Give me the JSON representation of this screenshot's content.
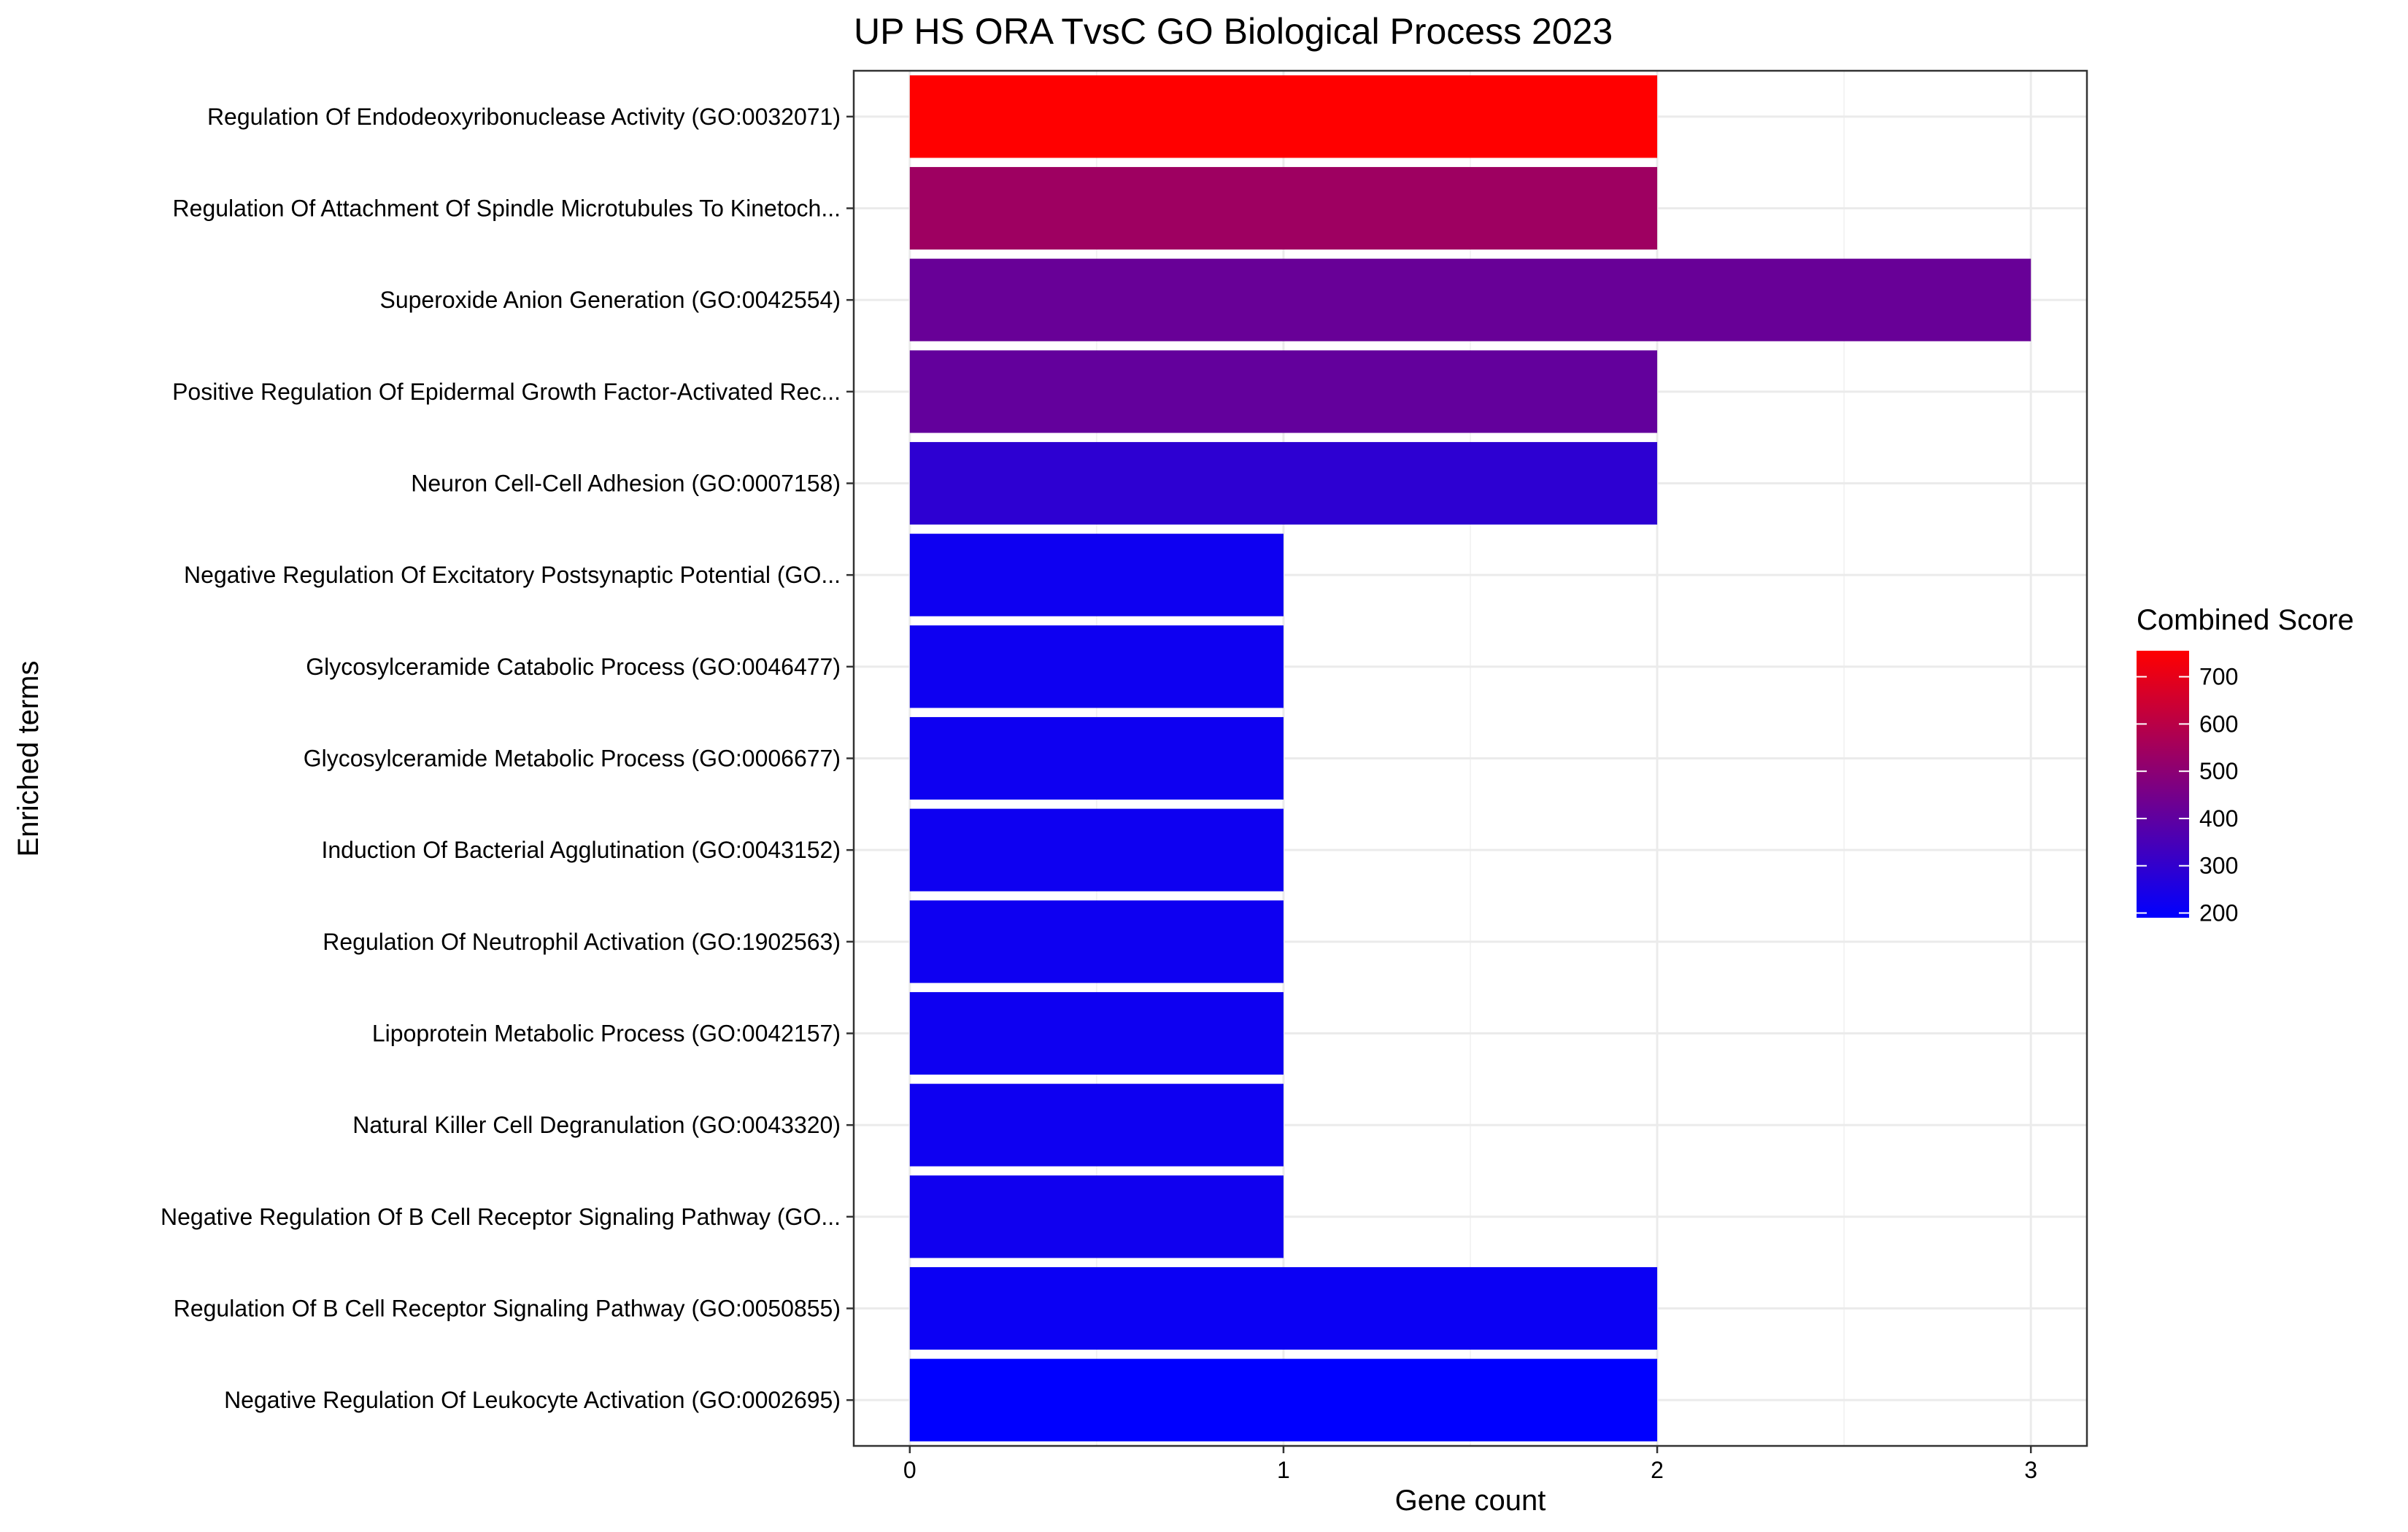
{
  "chart_data": {
    "type": "bar",
    "orientation": "horizontal",
    "title": "UP HS ORA TvsC GO Biological Process 2023",
    "xlabel": "Gene count",
    "ylabel": "Enriched terms",
    "xlim": [
      -0.15,
      3.15
    ],
    "xticks": [
      "0",
      "1",
      "2",
      "3"
    ],
    "grid": true,
    "legend_position": "right",
    "categories": [
      "Regulation Of Endodeoxyribonuclease Activity (GO:0032071)",
      "Regulation Of Attachment Of Spindle Microtubules To Kinetoch...",
      "Superoxide Anion Generation (GO:0042554)",
      "Positive Regulation Of Epidermal Growth Factor-Activated Rec...",
      "Neuron Cell-Cell Adhesion (GO:0007158)",
      "Negative Regulation Of Excitatory Postsynaptic Potential (GO...",
      "Glycosylceramide Catabolic Process (GO:0046477)",
      "Glycosylceramide Metabolic Process (GO:0006677)",
      "Induction Of Bacterial Agglutination (GO:0043152)",
      "Regulation Of Neutrophil Activation (GO:1902563)",
      "Lipoprotein Metabolic Process (GO:0042157)",
      "Natural Killer Cell Degranulation (GO:0043320)",
      "Negative Regulation Of B Cell Receptor Signaling Pathway (GO...",
      "Regulation Of B Cell Receptor Signaling Pathway (GO:0050855)",
      "Negative Regulation Of Leukocyte Activation (GO:0002695)"
    ],
    "values": [
      2,
      2,
      3,
      2,
      2,
      1,
      1,
      1,
      1,
      1,
      1,
      1,
      1,
      2,
      2
    ],
    "color_values": [
      755,
      540,
      420,
      410,
      290,
      220,
      220,
      220,
      220,
      220,
      220,
      220,
      225,
      215,
      190
    ],
    "color_scale": {
      "title": "Combined Score",
      "low_color": "#0000ff",
      "high_color": "#ff0000",
      "min": 190,
      "max": 755,
      "ticks": [
        "700",
        "600",
        "500",
        "400",
        "300",
        "200"
      ],
      "tick_values": [
        700,
        600,
        500,
        400,
        300,
        200
      ]
    }
  }
}
